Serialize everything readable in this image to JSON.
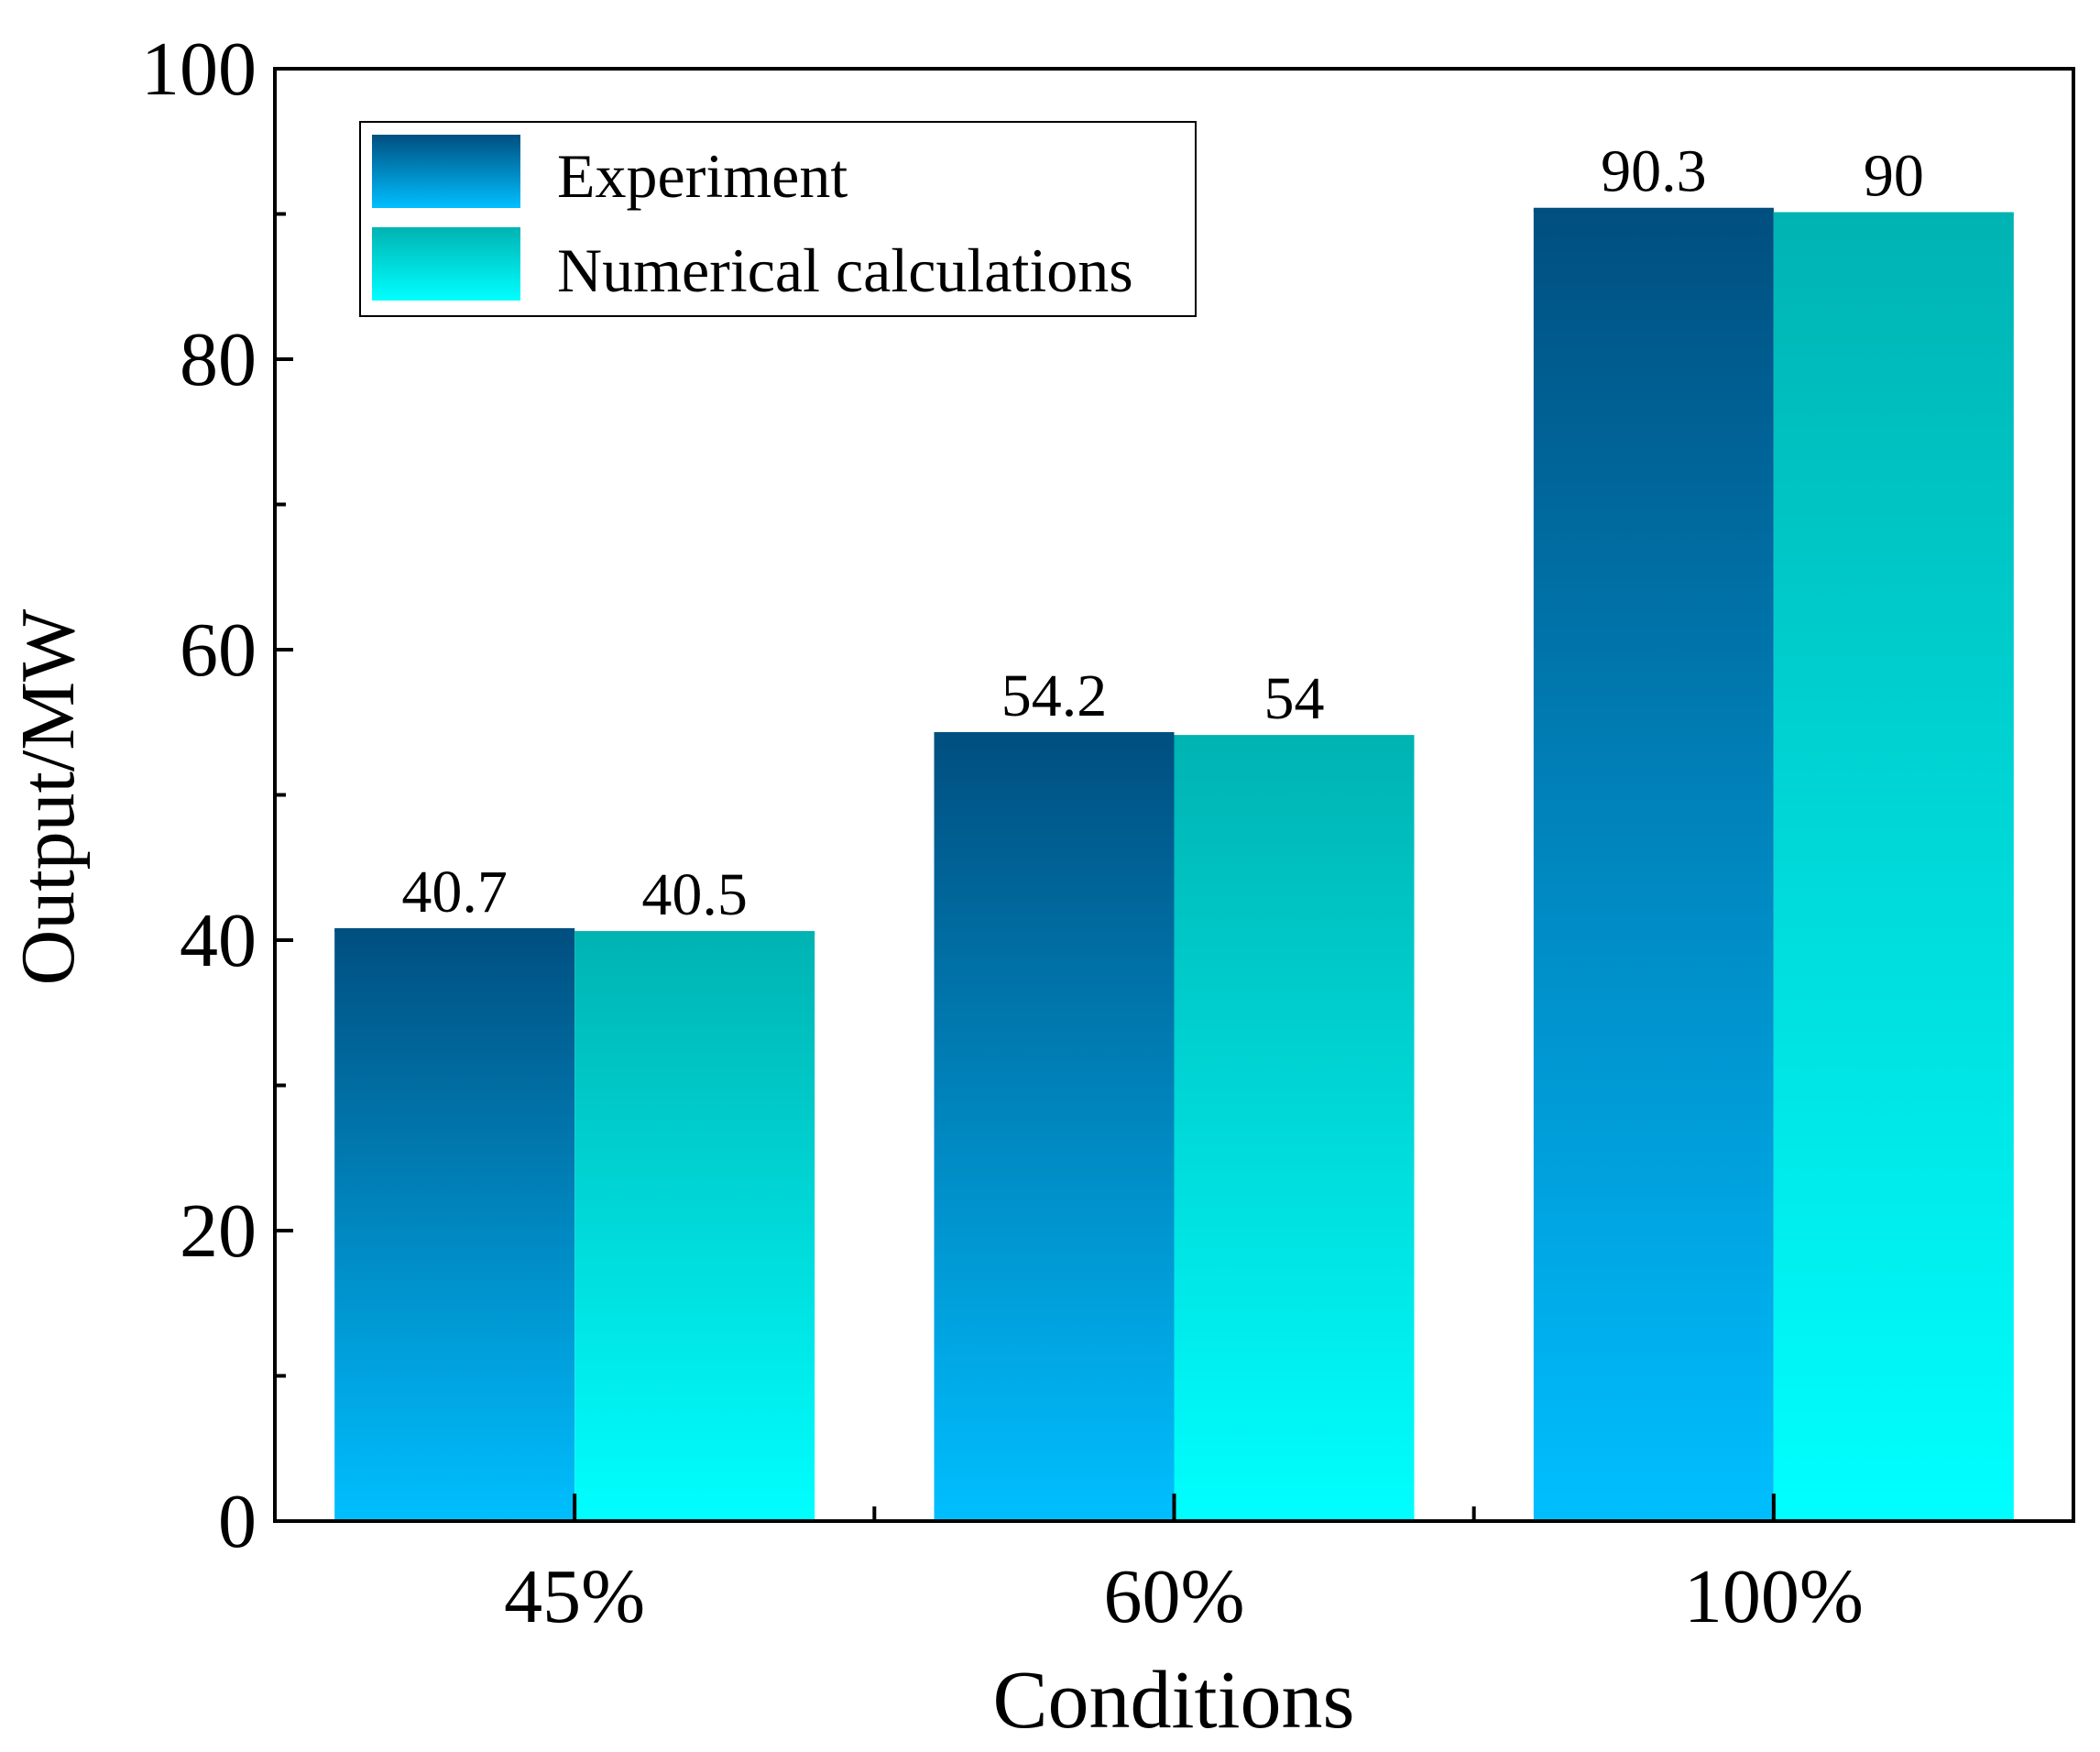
{
  "chart_data": {
    "type": "bar",
    "title": "",
    "xlabel": "Conditions",
    "ylabel": "Output/MW",
    "categories": [
      "45%",
      "60%",
      "100%"
    ],
    "ylim": [
      0,
      100
    ],
    "yticks": [
      0,
      20,
      40,
      60,
      80,
      100
    ],
    "yticks_labels": [
      "0",
      "20",
      "40",
      "60",
      "80",
      "100"
    ],
    "series": [
      {
        "name": "Experiment",
        "values": [
          40.7,
          54.2,
          90.3
        ],
        "value_labels": [
          "40.7",
          "54.2",
          "90.3"
        ],
        "color_top": "#004f80",
        "color_bottom": "#00bfff"
      },
      {
        "name": "Numerical calculations",
        "values": [
          40.5,
          54,
          90
        ],
        "value_labels": [
          "40.5",
          "54",
          "90"
        ],
        "color_top": "#00b3b3",
        "color_bottom": "#00ffff"
      }
    ],
    "legend_position": "top-left",
    "grid": false
  }
}
